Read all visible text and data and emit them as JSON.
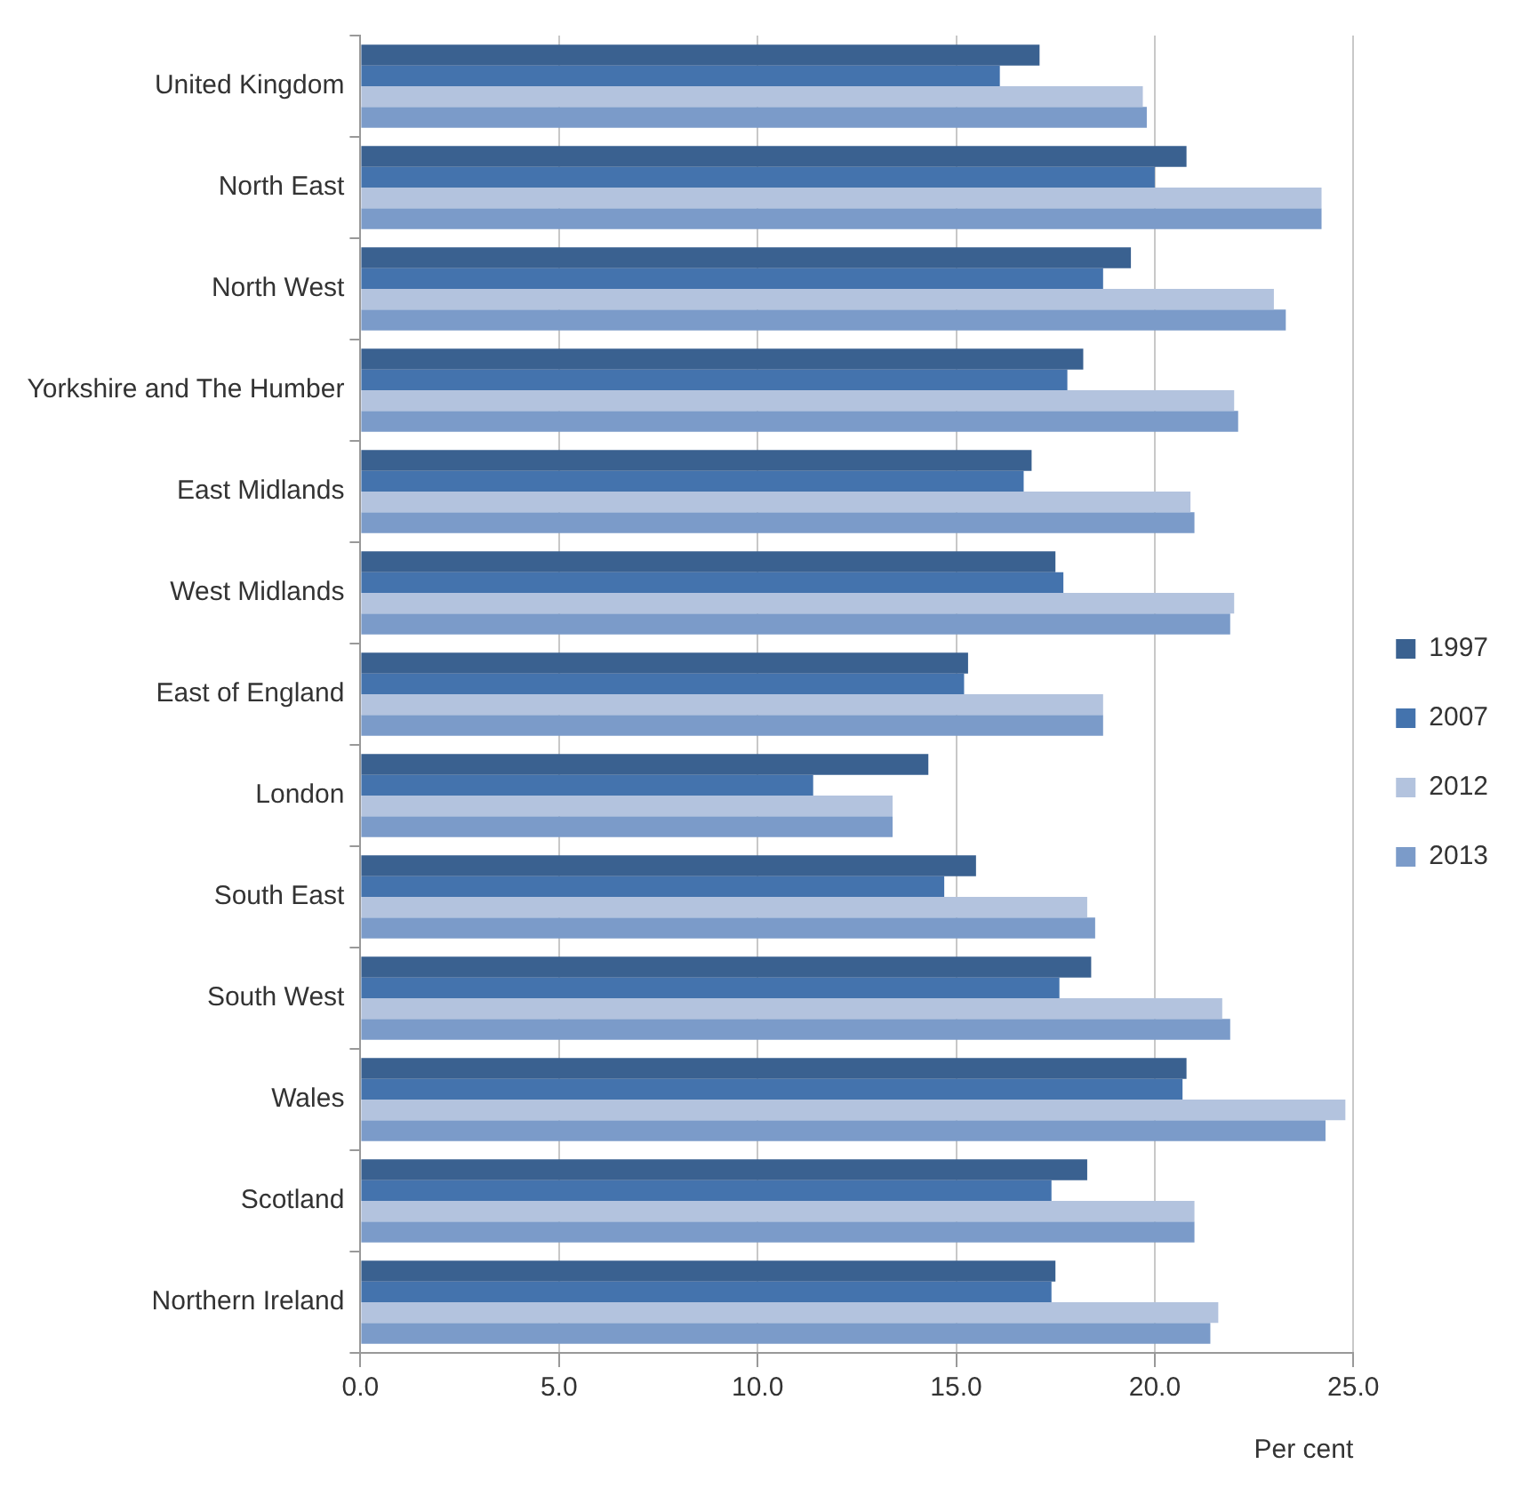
{
  "chart_data": {
    "type": "bar",
    "orientation": "horizontal",
    "xlabel": "Per cent",
    "categories": [
      "United Kingdom",
      "North East",
      "North West",
      "Yorkshire and The Humber",
      "East Midlands",
      "West Midlands",
      "East of England",
      "London",
      "South East",
      "South West",
      "Wales",
      "Scotland",
      "Northern Ireland"
    ],
    "series": [
      {
        "name": "1997",
        "color": "#3a6190",
        "values": [
          17.1,
          20.8,
          19.4,
          18.2,
          16.9,
          17.5,
          15.3,
          14.3,
          15.5,
          18.4,
          20.8,
          18.3,
          17.5
        ]
      },
      {
        "name": "2007",
        "color": "#4473ad",
        "values": [
          16.1,
          20.0,
          18.7,
          17.8,
          16.7,
          17.7,
          15.2,
          11.4,
          14.7,
          17.6,
          20.7,
          17.4,
          17.4
        ]
      },
      {
        "name": "2012",
        "color": "#b3c3de",
        "values": [
          19.7,
          24.2,
          23.0,
          22.0,
          20.9,
          22.0,
          18.7,
          13.4,
          18.3,
          21.7,
          24.8,
          21.0,
          21.6
        ]
      },
      {
        "name": "2013",
        "color": "#7b9bc9",
        "values": [
          19.8,
          24.2,
          23.3,
          22.1,
          21.0,
          21.9,
          18.7,
          13.4,
          18.5,
          21.9,
          24.3,
          21.0,
          21.4
        ]
      }
    ],
    "xlim": [
      0,
      25
    ],
    "xticks": [
      {
        "value": 0,
        "label": "0.0"
      },
      {
        "value": 5,
        "label": "5.0"
      },
      {
        "value": 10,
        "label": "10.0"
      },
      {
        "value": 15,
        "label": "15.0"
      },
      {
        "value": 20,
        "label": "20.0"
      },
      {
        "value": 25,
        "label": "25.0"
      }
    ],
    "grid": "x",
    "legend": "right"
  }
}
